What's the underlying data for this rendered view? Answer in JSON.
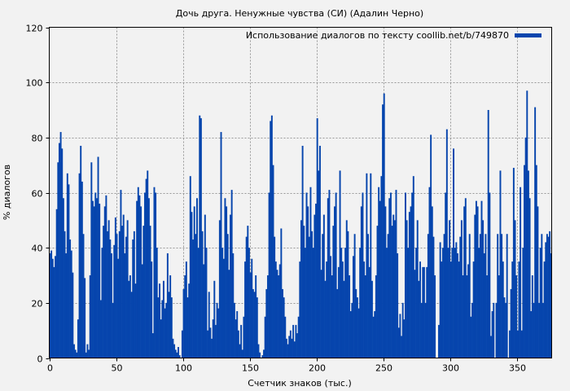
{
  "chart_data": {
    "type": "bar",
    "title": "Дочь друга. Ненужные чувства (СИ) (Адалин Черно)",
    "xlabel": "Счетчик знаков (тыс.)",
    "ylabel": "% диалогов",
    "xlim": [
      0,
      376
    ],
    "ylim": [
      0,
      120
    ],
    "xticks": [
      0,
      50,
      100,
      150,
      200,
      250,
      300,
      350
    ],
    "yticks": [
      0,
      20,
      40,
      60,
      80,
      100,
      120
    ],
    "grid": true,
    "legend_position": "top-right",
    "color": "#0645ad",
    "series": [
      {
        "name": "Использование диалогов по тексту coollib.net/b/749870",
        "values": [
          38,
          39,
          36,
          33,
          37,
          54,
          71,
          78,
          82,
          76,
          58,
          46,
          38,
          67,
          63,
          43,
          39,
          31,
          5,
          3,
          2,
          14,
          67,
          77,
          64,
          45,
          29,
          2,
          5,
          3,
          30,
          71,
          57,
          55,
          60,
          58,
          73,
          56,
          21,
          40,
          48,
          55,
          59,
          46,
          50,
          43,
          38,
          20,
          41,
          51,
          45,
          36,
          46,
          61,
          48,
          52,
          38,
          44,
          50,
          28,
          30,
          24,
          43,
          46,
          27,
          57,
          62,
          59,
          55,
          34,
          48,
          60,
          65,
          68,
          58,
          48,
          35,
          9,
          62,
          60,
          40,
          22,
          27,
          14,
          21,
          28,
          18,
          20,
          38,
          24,
          30,
          22,
          7,
          5,
          3,
          2,
          4,
          1,
          0,
          10,
          25,
          30,
          35,
          22,
          27,
          66,
          53,
          43,
          55,
          45,
          58,
          40,
          88,
          87,
          46,
          34,
          52,
          40,
          10,
          24,
          11,
          7,
          14,
          28,
          12,
          20,
          18,
          50,
          82,
          40,
          36,
          58,
          55,
          45,
          32,
          52,
          61,
          38,
          20,
          14,
          17,
          10,
          5,
          12,
          3,
          15,
          35,
          44,
          48,
          40,
          31,
          36,
          25,
          24,
          30,
          22,
          5,
          2,
          0,
          1,
          3,
          15,
          25,
          30,
          60,
          86,
          88,
          70,
          44,
          35,
          32,
          30,
          34,
          47,
          25,
          22,
          15,
          7,
          5,
          8,
          10,
          7,
          12,
          6,
          12,
          9,
          15,
          35,
          50,
          77,
          48,
          40,
          60,
          55,
          44,
          62,
          46,
          40,
          52,
          56,
          87,
          68,
          77,
          32,
          45,
          52,
          28,
          35,
          58,
          61,
          37,
          30,
          48,
          55,
          60,
          25,
          33,
          68,
          40,
          35,
          28,
          40,
          50,
          46,
          30,
          17,
          20,
          37,
          45,
          25,
          22,
          18,
          40,
          55,
          60,
          35,
          30,
          67,
          45,
          33,
          67,
          28,
          15,
          17,
          30,
          48,
          62,
          57,
          66,
          92,
          96,
          55,
          40,
          45,
          58,
          60,
          48,
          52,
          50,
          61,
          38,
          11,
          16,
          8,
          20,
          14,
          60,
          50,
          40,
          53,
          55,
          60,
          66,
          32,
          40,
          50,
          28,
          35,
          20,
          33,
          33,
          20,
          33,
          45,
          62,
          81,
          55,
          44,
          30,
          0,
          0,
          12,
          42,
          35,
          40,
          45,
          60,
          83,
          40,
          50,
          35,
          40,
          76,
          40,
          42,
          38,
          35,
          44,
          50,
          30,
          55,
          58,
          30,
          34,
          45,
          15,
          20,
          35,
          52,
          57,
          55,
          40,
          45,
          57,
          50,
          38,
          45,
          30,
          90,
          60,
          8,
          17,
          20,
          0,
          20,
          45,
          30,
          68,
          45,
          35,
          22,
          20,
          45,
          0,
          10,
          25,
          35,
          69,
          50,
          30,
          10,
          35,
          62,
          10,
          40,
          70,
          80,
          97,
          68,
          58,
          17,
          30,
          20,
          91,
          70,
          55,
          20,
          40,
          45,
          20,
          35,
          42,
          45,
          44,
          46,
          38
        ]
      }
    ]
  }
}
